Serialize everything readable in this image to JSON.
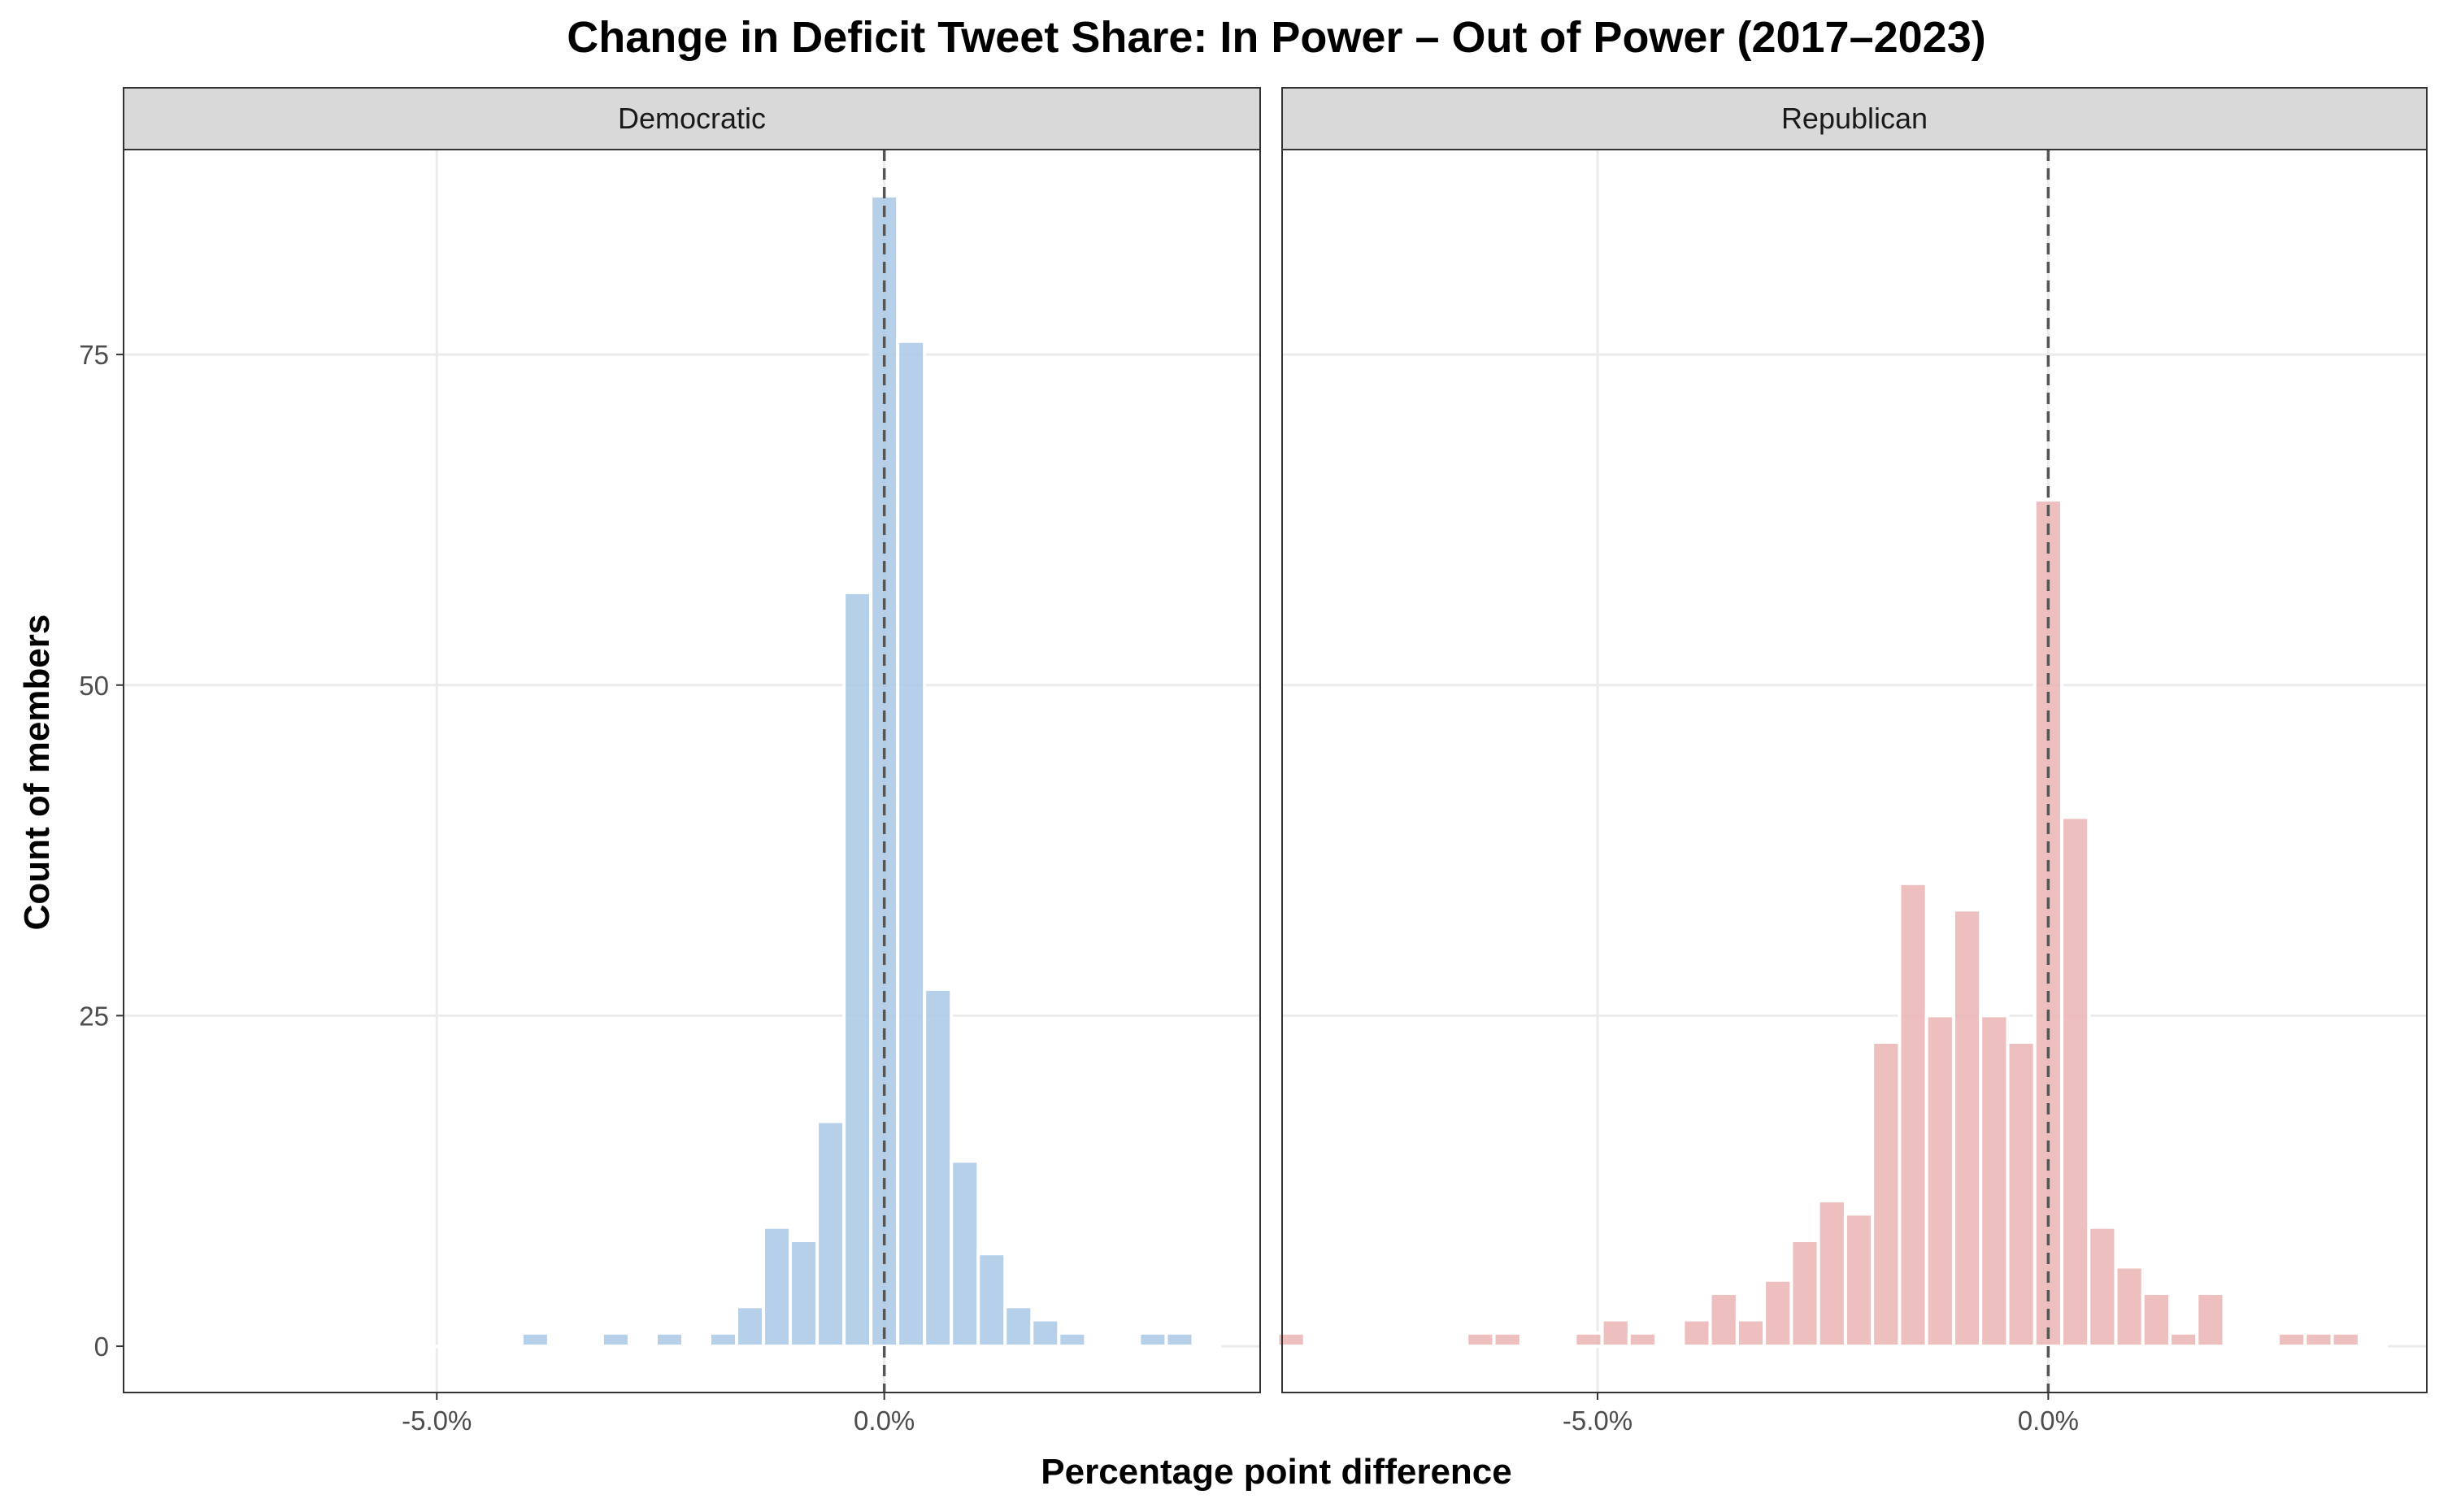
{
  "chart_data": {
    "type": "bar",
    "title": "Change in Deficit Tweet Share: In Power – Out of Power (2017–2023)",
    "xlabel": "Percentage point difference",
    "ylabel": "Count of members",
    "xlim": [
      -8.5,
      4.2
    ],
    "ylim": [
      -3.5,
      90.5
    ],
    "x_ticks": [
      -5,
      0
    ],
    "x_tick_labels": [
      "-5.0%",
      "0.0%"
    ],
    "y_ticks": [
      0,
      25,
      50,
      75
    ],
    "y_tick_labels": [
      "0",
      "25",
      "50",
      "75"
    ],
    "bin_width": 0.3,
    "reference_line_x": 0,
    "grid": true,
    "panels": [
      {
        "name": "Democratic",
        "color": "#A9C8E6",
        "bins": [
          {
            "x": -8.4,
            "count": 0
          },
          {
            "x": -8.1,
            "count": 0
          },
          {
            "x": -7.8,
            "count": 0
          },
          {
            "x": -7.5,
            "count": 0
          },
          {
            "x": -7.2,
            "count": 0
          },
          {
            "x": -6.9,
            "count": 0
          },
          {
            "x": -6.6,
            "count": 0
          },
          {
            "x": -6.3,
            "count": 0
          },
          {
            "x": -6.0,
            "count": 0
          },
          {
            "x": -5.7,
            "count": 0
          },
          {
            "x": -5.4,
            "count": 0
          },
          {
            "x": -5.1,
            "count": 0
          },
          {
            "x": -4.8,
            "count": 0
          },
          {
            "x": -4.5,
            "count": 0
          },
          {
            "x": -4.2,
            "count": 0
          },
          {
            "x": -3.9,
            "count": 1
          },
          {
            "x": -3.6,
            "count": 0
          },
          {
            "x": -3.3,
            "count": 0
          },
          {
            "x": -3.0,
            "count": 1
          },
          {
            "x": -2.7,
            "count": 0
          },
          {
            "x": -2.4,
            "count": 1
          },
          {
            "x": -2.1,
            "count": 0
          },
          {
            "x": -1.8,
            "count": 1
          },
          {
            "x": -1.5,
            "count": 3
          },
          {
            "x": -1.2,
            "count": 9
          },
          {
            "x": -0.9,
            "count": 8
          },
          {
            "x": -0.6,
            "count": 17
          },
          {
            "x": -0.3,
            "count": 57
          },
          {
            "x": 0.0,
            "count": 87
          },
          {
            "x": 0.3,
            "count": 76
          },
          {
            "x": 0.6,
            "count": 27
          },
          {
            "x": 0.9,
            "count": 14
          },
          {
            "x": 1.2,
            "count": 7
          },
          {
            "x": 1.5,
            "count": 3
          },
          {
            "x": 1.8,
            "count": 2
          },
          {
            "x": 2.1,
            "count": 1
          },
          {
            "x": 2.4,
            "count": 0
          },
          {
            "x": 2.7,
            "count": 0
          },
          {
            "x": 3.0,
            "count": 1
          },
          {
            "x": 3.3,
            "count": 1
          },
          {
            "x": 3.6,
            "count": 0
          }
        ]
      },
      {
        "name": "Republican",
        "color": "#EBB4B4",
        "bins": [
          {
            "x": -8.4,
            "count": 1
          },
          {
            "x": -8.1,
            "count": 0
          },
          {
            "x": -7.8,
            "count": 0
          },
          {
            "x": -7.5,
            "count": 0
          },
          {
            "x": -7.2,
            "count": 0
          },
          {
            "x": -6.9,
            "count": 0
          },
          {
            "x": -6.6,
            "count": 0
          },
          {
            "x": -6.3,
            "count": 1
          },
          {
            "x": -6.0,
            "count": 1
          },
          {
            "x": -5.7,
            "count": 0
          },
          {
            "x": -5.4,
            "count": 0
          },
          {
            "x": -5.1,
            "count": 1
          },
          {
            "x": -4.8,
            "count": 2
          },
          {
            "x": -4.5,
            "count": 1
          },
          {
            "x": -4.2,
            "count": 0
          },
          {
            "x": -3.9,
            "count": 2
          },
          {
            "x": -3.6,
            "count": 4
          },
          {
            "x": -3.3,
            "count": 2
          },
          {
            "x": -3.0,
            "count": 5
          },
          {
            "x": -2.7,
            "count": 8
          },
          {
            "x": -2.4,
            "count": 11
          },
          {
            "x": -2.1,
            "count": 10
          },
          {
            "x": -1.8,
            "count": 23
          },
          {
            "x": -1.5,
            "count": 35
          },
          {
            "x": -1.2,
            "count": 25
          },
          {
            "x": -0.9,
            "count": 33
          },
          {
            "x": -0.6,
            "count": 25
          },
          {
            "x": -0.3,
            "count": 23
          },
          {
            "x": 0.0,
            "count": 64
          },
          {
            "x": 0.3,
            "count": 40
          },
          {
            "x": 0.6,
            "count": 9
          },
          {
            "x": 0.9,
            "count": 6
          },
          {
            "x": 1.2,
            "count": 4
          },
          {
            "x": 1.5,
            "count": 1
          },
          {
            "x": 1.8,
            "count": 4
          },
          {
            "x": 2.1,
            "count": 0
          },
          {
            "x": 2.4,
            "count": 0
          },
          {
            "x": 2.7,
            "count": 1
          },
          {
            "x": 3.0,
            "count": 1
          },
          {
            "x": 3.3,
            "count": 1
          },
          {
            "x": 3.6,
            "count": 0
          }
        ]
      }
    ]
  }
}
